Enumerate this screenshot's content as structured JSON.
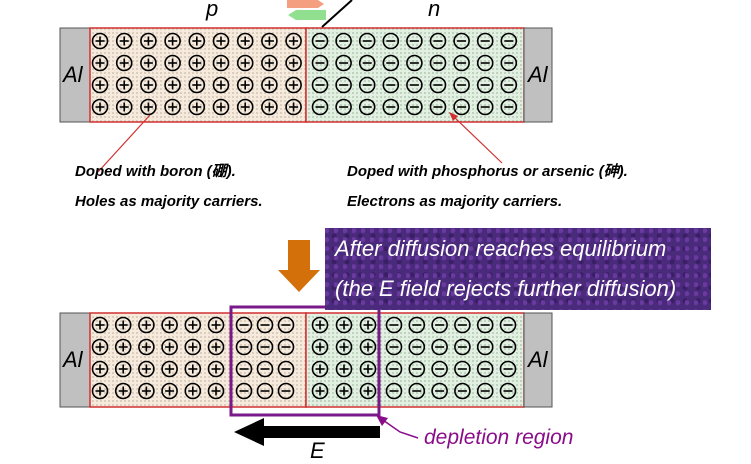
{
  "top_device": {
    "p_label": "p",
    "n_label": "n",
    "left_contact": "Al",
    "right_contact": "Al",
    "p_rows": 4,
    "p_cols": 9,
    "n_rows": 4,
    "n_cols": 9
  },
  "notes": {
    "p_doping": "Doped with boron (硼).",
    "p_carriers": "Holes as majority carriers.",
    "n_doping": "Doped with phosphorus or arsenic (砷).",
    "n_carriers": "Electrons as majority carriers."
  },
  "banner": {
    "line1": "After diffusion reaches equilibrium",
    "line2": "(the E field rejects further diffusion)"
  },
  "bottom_device": {
    "left_contact": "Al",
    "right_contact": "Al",
    "p_neutral_cols": 6,
    "p_depleted_cols": 3,
    "n_depleted_cols": 3,
    "n_neutral_cols": 6,
    "rows": 4
  },
  "labels": {
    "field": "E",
    "depletion": "depletion region"
  },
  "colors": {
    "p_fill": "#f6eadd",
    "n_fill": "#e2f0e2",
    "contact": "#c0c0c0",
    "border": "#d23030",
    "depletion_box": "#7a1a8a",
    "down_arrow": "#d4700a",
    "arrow_pink": "#f4a080",
    "arrow_green": "#90e090"
  }
}
